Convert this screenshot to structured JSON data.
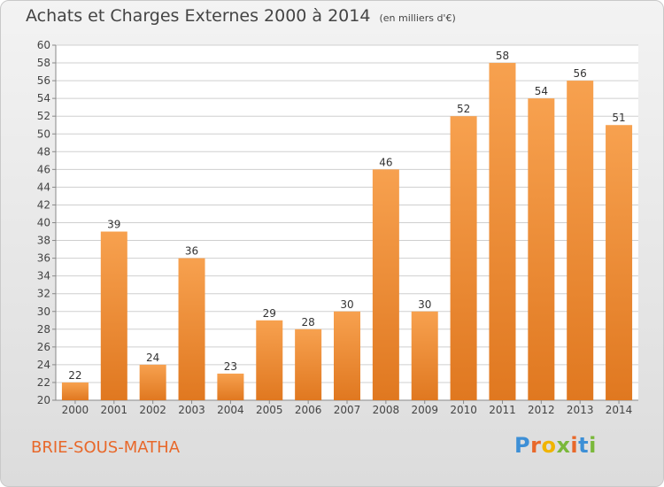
{
  "header": {
    "title": "Achats et Charges Externes 2000 à 2014",
    "unit": "(en milliers d'€)"
  },
  "footer": {
    "city": "BRIE-SOUS-MATHA",
    "logo": "Proxiti"
  },
  "colors": {
    "bar_top": "#f7a14f",
    "bar_bottom": "#e07820",
    "city": "#e8682a",
    "logo": [
      "#3d8fd6",
      "#e8682a",
      "#f0b400",
      "#7ab83a",
      "#e8682a",
      "#3d8fd6",
      "#7ab83a"
    ]
  },
  "chart_data": {
    "type": "bar",
    "categories": [
      "2000",
      "2001",
      "2002",
      "2003",
      "2004",
      "2005",
      "2006",
      "2007",
      "2008",
      "2009",
      "2010",
      "2011",
      "2012",
      "2013",
      "2014"
    ],
    "values": [
      22,
      39,
      24,
      36,
      23,
      29,
      28,
      30,
      46,
      30,
      52,
      58,
      54,
      56,
      51
    ],
    "ylim": [
      20,
      60
    ],
    "yticks": [
      20,
      22,
      24,
      26,
      28,
      30,
      32,
      34,
      36,
      38,
      40,
      42,
      44,
      46,
      48,
      50,
      52,
      54,
      56,
      58,
      60
    ],
    "grid": true,
    "legend": "none"
  }
}
